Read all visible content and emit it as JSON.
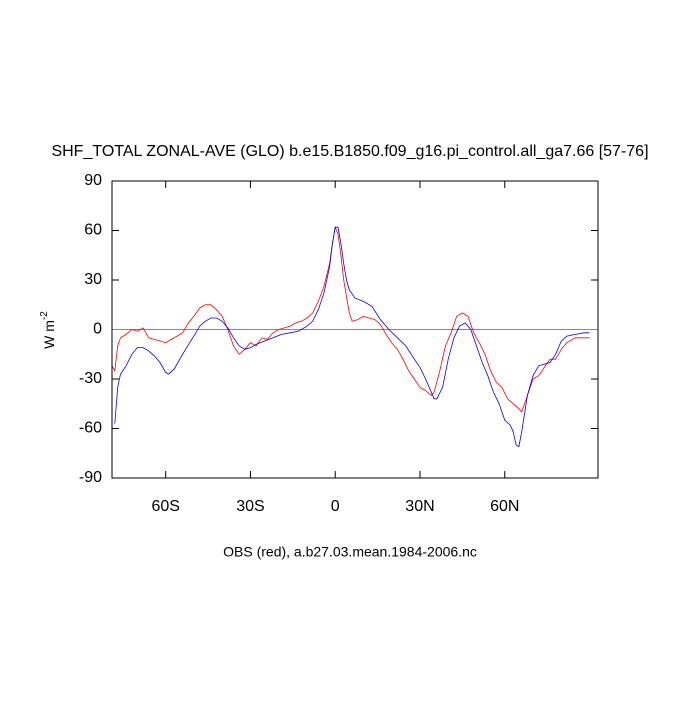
{
  "chart_data": {
    "type": "line",
    "title": "SHF_TOTAL ZONAL-AVE (GLO) b.e15.B1850.f09_g16.pi_control.all_ga7.66 [57-76]",
    "ylabel": "W m",
    "ylabel_sup": "-2",
    "xlabel": "OBS (red), a.b27.03.mean.1984-2006.nc",
    "xlim": [
      -79,
      93
    ],
    "ylim": [
      -90,
      90
    ],
    "xticks": [
      {
        "value": -60,
        "label": "60S"
      },
      {
        "value": -30,
        "label": "30S"
      },
      0,
      {
        "value": 30,
        "label": "30N"
      },
      {
        "value": 60,
        "label": "60N"
      }
    ],
    "yticks": [
      -90,
      -60,
      -30,
      0,
      30,
      60,
      90
    ],
    "hline": 0,
    "series": [
      {
        "name": "OBS",
        "color": "#ff0000",
        "x": [
          -79,
          -78,
          -77,
          -76,
          -74,
          -72,
          -70,
          -68,
          -66,
          -64,
          -62,
          -60,
          -58,
          -56,
          -54,
          -52,
          -50,
          -48,
          -46,
          -44,
          -42,
          -40,
          -38,
          -36,
          -34,
          -32,
          -30,
          -28,
          -26,
          -24,
          -22,
          -20,
          -18,
          -16,
          -14,
          -12,
          -10,
          -8,
          -6,
          -4,
          -2,
          -1,
          0,
          1,
          2,
          3,
          4,
          5,
          6,
          8,
          10,
          12,
          14,
          16,
          18,
          20,
          22,
          24,
          26,
          28,
          30,
          32,
          34,
          35,
          37,
          39,
          41,
          43,
          45,
          47,
          49,
          51,
          53,
          55,
          57,
          59,
          61,
          63,
          65,
          66,
          68,
          70,
          72,
          74,
          76,
          78,
          80,
          82,
          85,
          88,
          90
        ],
        "values": [
          -22,
          -25,
          -10,
          -5,
          -3,
          0,
          -1,
          1,
          -5,
          -6,
          -7,
          -8,
          -6,
          -4,
          -2,
          4,
          8,
          13,
          15,
          15,
          12,
          8,
          0,
          -10,
          -15,
          -12,
          -8,
          -10,
          -5,
          -6,
          -2,
          0,
          1,
          2,
          4,
          5,
          7,
          10,
          17,
          26,
          40,
          52,
          62,
          58,
          45,
          30,
          20,
          10,
          5,
          6,
          8,
          7,
          6,
          3,
          -3,
          -8,
          -12,
          -18,
          -25,
          -30,
          -35,
          -37,
          -40,
          -38,
          -25,
          -10,
          -2,
          8,
          10,
          8,
          -2,
          -8,
          -15,
          -25,
          -32,
          -35,
          -42,
          -45,
          -48,
          -50,
          -40,
          -30,
          -28,
          -23,
          -18,
          -18,
          -12,
          -8,
          -5,
          -5,
          -5
        ]
      },
      {
        "name": "a.b27.03.mean.1984-2006.nc",
        "color": "#0000ff",
        "x": [
          -78,
          -77,
          -76,
          -74,
          -72,
          -70,
          -68,
          -66,
          -64,
          -62,
          -60,
          -59,
          -57,
          -55,
          -53,
          -50,
          -48,
          -46,
          -44,
          -42,
          -40,
          -38,
          -36,
          -34,
          -32,
          -30,
          -28,
          -25,
          -22,
          -19,
          -16,
          -13,
          -10,
          -8,
          -6,
          -4,
          -2,
          -1,
          0,
          1,
          2,
          3,
          4,
          5,
          7,
          10,
          13,
          16,
          19,
          22,
          25,
          28,
          30,
          32,
          34,
          35,
          36,
          38,
          40,
          42,
          44,
          46,
          48,
          50,
          52,
          54,
          56,
          58,
          60,
          62,
          63,
          64,
          65,
          66,
          68,
          70,
          72,
          74,
          76,
          78,
          80,
          82,
          85,
          88,
          90
        ],
        "values": [
          -57,
          -35,
          -27,
          -22,
          -15,
          -11,
          -11,
          -13,
          -16,
          -20,
          -26,
          -27,
          -24,
          -18,
          -12,
          -4,
          2,
          5,
          7,
          7,
          5,
          1,
          -5,
          -10,
          -12,
          -11,
          -9,
          -7,
          -5,
          -3,
          -2,
          -1,
          2,
          5,
          12,
          22,
          38,
          52,
          62,
          62,
          52,
          40,
          30,
          24,
          19,
          17,
          14,
          6,
          0,
          -5,
          -10,
          -18,
          -23,
          -30,
          -38,
          -42,
          -42,
          -35,
          -18,
          -5,
          2,
          4,
          0,
          -10,
          -20,
          -28,
          -38,
          -45,
          -55,
          -58,
          -62,
          -70,
          -71,
          -62,
          -40,
          -28,
          -22,
          -21,
          -20,
          -15,
          -7,
          -4,
          -3,
          -2,
          -2
        ]
      }
    ]
  }
}
